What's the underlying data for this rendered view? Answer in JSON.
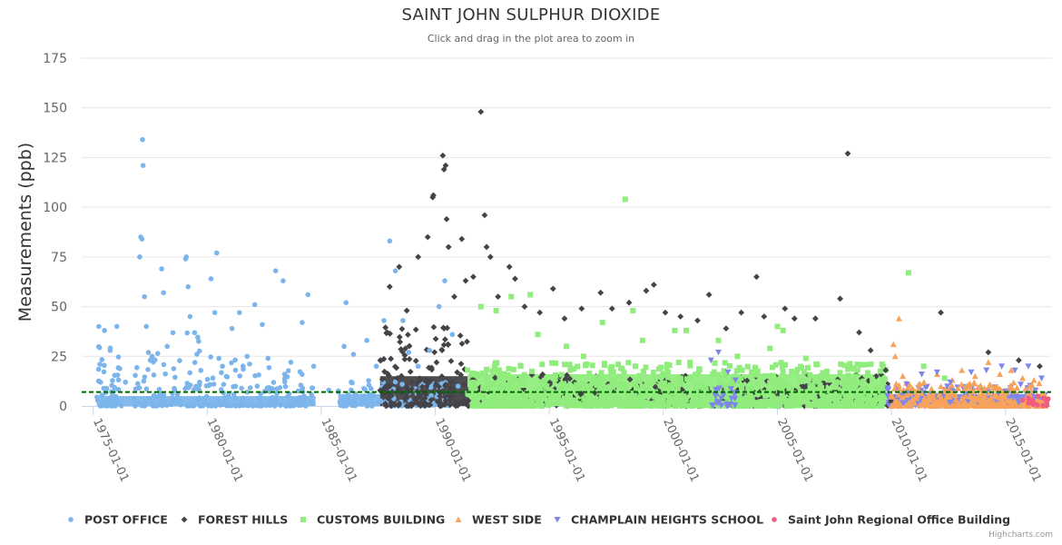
{
  "header": {
    "title": "SAINT JOHN SULPHUR DIOXIDE",
    "subtitle": "Click and drag in the plot area to zoom in"
  },
  "credits": "Highcharts.com",
  "chart_data": {
    "type": "scatter",
    "title": "SAINT JOHN SULPHUR DIOXIDE",
    "subtitle": "Click and drag in the plot area to zoom in",
    "ylabel": "Measurements (ppb)",
    "xlabel": "",
    "ylim": [
      0,
      175
    ],
    "xlim": [
      "1974-07-01",
      "2016-12-31"
    ],
    "y_ticks": [
      0,
      25,
      50,
      75,
      100,
      125,
      150,
      175
    ],
    "x_ticks": [
      "1975-01-01",
      "1980-01-01",
      "1985-01-01",
      "1990-01-01",
      "1995-01-01",
      "2000-01-01",
      "2005-01-01",
      "2010-01-01",
      "2015-01-01"
    ],
    "grid": "horizontal",
    "legend_position": "bottom",
    "reference_line": {
      "y": 7,
      "style": "dashed",
      "color": "#006400"
    },
    "series": [
      {
        "name": "POST OFFICE",
        "color": "#7cb5ec",
        "symbol": "circle",
        "points": [
          [
            "1975-04-01",
            40
          ],
          [
            "1975-07-01",
            38
          ],
          [
            "1975-10-01",
            28
          ],
          [
            "1976-01-15",
            40
          ],
          [
            "1976-06-01",
            12
          ],
          [
            "1977-03-01",
            134
          ],
          [
            "1977-03-10",
            121
          ],
          [
            "1977-02-01",
            85
          ],
          [
            "1977-02-20",
            84
          ],
          [
            "1977-01-15",
            75
          ],
          [
            "1977-04-01",
            55
          ],
          [
            "1977-05-01",
            40
          ],
          [
            "1977-08-01",
            25
          ],
          [
            "1978-01-01",
            69
          ],
          [
            "1978-02-01",
            57
          ],
          [
            "1978-04-01",
            30
          ],
          [
            "1979-02-01",
            75
          ],
          [
            "1979-01-20",
            74
          ],
          [
            "1979-03-01",
            60
          ],
          [
            "1979-04-01",
            45
          ],
          [
            "1979-09-01",
            12
          ],
          [
            "1980-03-01",
            64
          ],
          [
            "1980-06-01",
            77
          ],
          [
            "1980-05-01",
            47
          ],
          [
            "1980-09-01",
            20
          ],
          [
            "1981-02-01",
            39
          ],
          [
            "1981-06-01",
            47
          ],
          [
            "1981-10-01",
            25
          ],
          [
            "1982-02-01",
            51
          ],
          [
            "1982-06-01",
            41
          ],
          [
            "1982-09-01",
            24
          ],
          [
            "1983-01-01",
            68
          ],
          [
            "1983-05-01",
            63
          ],
          [
            "1983-09-01",
            22
          ],
          [
            "1984-03-01",
            42
          ],
          [
            "1984-06-01",
            56
          ],
          [
            "1984-09-01",
            20
          ],
          [
            "1985-05-01",
            8
          ],
          [
            "1986-01-01",
            30
          ],
          [
            "1986-02-01",
            52
          ],
          [
            "1986-06-01",
            26
          ],
          [
            "1987-01-01",
            33
          ],
          [
            "1987-06-01",
            20
          ],
          [
            "1987-10-01",
            43
          ],
          [
            "1988-01-01",
            83
          ],
          [
            "1988-04-01",
            68
          ],
          [
            "1988-08-01",
            43
          ],
          [
            "1988-11-01",
            27
          ],
          [
            "1989-04-01",
            20
          ],
          [
            "1989-10-01",
            28
          ],
          [
            "1990-03-01",
            50
          ],
          [
            "1990-06-01",
            63
          ],
          [
            "1990-10-01",
            36
          ],
          [
            "1991-01-01",
            10
          ]
        ]
      },
      {
        "name": "FOREST HILLS",
        "color": "#434348",
        "symbol": "diamond",
        "points": [
          [
            "1988-01-01",
            60
          ],
          [
            "1988-06-01",
            70
          ],
          [
            "1988-10-01",
            48
          ],
          [
            "1989-04-01",
            75
          ],
          [
            "1989-09-01",
            85
          ],
          [
            "1989-12-01",
            106
          ],
          [
            "1989-11-20",
            105
          ],
          [
            "1990-05-01",
            126
          ],
          [
            "1990-05-20",
            119
          ],
          [
            "1990-06-15",
            121
          ],
          [
            "1990-07-01",
            94
          ],
          [
            "1990-08-01",
            80
          ],
          [
            "1990-11-01",
            55
          ],
          [
            "1991-03-01",
            84
          ],
          [
            "1991-05-01",
            63
          ],
          [
            "1991-09-01",
            65
          ],
          [
            "1992-01-01",
            148
          ],
          [
            "1992-03-01",
            96
          ],
          [
            "1992-04-01",
            80
          ],
          [
            "1992-06-01",
            75
          ],
          [
            "1992-10-01",
            55
          ],
          [
            "1993-04-01",
            70
          ],
          [
            "1993-07-01",
            64
          ],
          [
            "1993-12-01",
            50
          ],
          [
            "1994-08-01",
            47
          ],
          [
            "1995-03-01",
            59
          ],
          [
            "1995-09-01",
            44
          ],
          [
            "1996-06-01",
            49
          ],
          [
            "1997-04-01",
            57
          ],
          [
            "1997-10-01",
            49
          ],
          [
            "1998-07-01",
            52
          ],
          [
            "1999-04-01",
            58
          ],
          [
            "1999-08-01",
            61
          ],
          [
            "2000-02-01",
            47
          ],
          [
            "2000-10-01",
            45
          ],
          [
            "2001-07-01",
            43
          ],
          [
            "2002-01-01",
            56
          ],
          [
            "2002-10-01",
            39
          ],
          [
            "2003-06-01",
            47
          ],
          [
            "2004-02-01",
            65
          ],
          [
            "2004-06-01",
            45
          ],
          [
            "2005-05-01",
            49
          ],
          [
            "2005-10-01",
            44
          ],
          [
            "2006-09-01",
            44
          ],
          [
            "2007-10-01",
            54
          ],
          [
            "2008-02-01",
            127
          ],
          [
            "2008-08-01",
            37
          ],
          [
            "2009-02-01",
            28
          ],
          [
            "2009-10-01",
            18
          ],
          [
            "2012-03-01",
            47
          ],
          [
            "2014-04-01",
            27
          ],
          [
            "2015-08-01",
            23
          ],
          [
            "2016-07-01",
            20
          ]
        ]
      },
      {
        "name": "CUSTOMS BUILDING",
        "color": "#90ed7d",
        "symbol": "square",
        "points": [
          [
            "1992-01-01",
            50
          ],
          [
            "1992-09-01",
            48
          ],
          [
            "1993-05-01",
            55
          ],
          [
            "1994-03-01",
            56
          ],
          [
            "1994-07-01",
            36
          ],
          [
            "1995-10-01",
            30
          ],
          [
            "1996-07-01",
            25
          ],
          [
            "1997-05-01",
            42
          ],
          [
            "1998-05-01",
            104
          ],
          [
            "1998-09-01",
            48
          ],
          [
            "1999-02-01",
            33
          ],
          [
            "2000-07-01",
            38
          ],
          [
            "2001-01-01",
            38
          ],
          [
            "2002-06-01",
            33
          ],
          [
            "2003-04-01",
            25
          ],
          [
            "2004-09-01",
            29
          ],
          [
            "2005-01-01",
            40
          ],
          [
            "2005-04-01",
            38
          ],
          [
            "2006-04-01",
            24
          ],
          [
            "2007-03-01",
            17
          ],
          [
            "2008-07-01",
            21
          ],
          [
            "2009-08-01",
            21
          ],
          [
            "2010-10-01",
            67
          ],
          [
            "2011-06-01",
            20
          ],
          [
            "2012-05-01",
            14
          ]
        ]
      },
      {
        "name": "WEST SIDE",
        "color": "#f7a35c",
        "symbol": "triangle",
        "points": [
          [
            "2010-02-01",
            31
          ],
          [
            "2010-05-01",
            44
          ],
          [
            "2010-03-01",
            25
          ],
          [
            "2010-07-01",
            15
          ],
          [
            "2011-04-01",
            11
          ],
          [
            "2012-01-01",
            16
          ],
          [
            "2012-09-01",
            13
          ],
          [
            "2013-02-01",
            18
          ],
          [
            "2013-09-01",
            15
          ],
          [
            "2014-04-01",
            22
          ],
          [
            "2014-10-01",
            16
          ],
          [
            "2015-04-01",
            18
          ],
          [
            "2015-10-01",
            14
          ],
          [
            "2016-04-01",
            13
          ]
        ]
      },
      {
        "name": "CHAMPLAIN HEIGHTS SCHOOL",
        "color": "#8085e9",
        "symbol": "triangle-down",
        "points": [
          [
            "2002-02-01",
            23
          ],
          [
            "2002-06-01",
            27
          ],
          [
            "2002-11-01",
            17
          ],
          [
            "2003-03-01",
            13
          ],
          [
            "2009-11-01",
            9
          ],
          [
            "2010-09-01",
            11
          ],
          [
            "2011-05-01",
            16
          ],
          [
            "2012-01-01",
            17
          ],
          [
            "2012-08-01",
            12
          ],
          [
            "2013-07-01",
            17
          ],
          [
            "2014-03-01",
            18
          ],
          [
            "2014-11-01",
            20
          ],
          [
            "2015-06-01",
            18
          ],
          [
            "2016-01-01",
            20
          ],
          [
            "2016-08-01",
            14
          ]
        ]
      },
      {
        "name": "Saint John Regional Office Building",
        "color": "#f15c80",
        "symbol": "circle",
        "points": [
          [
            "2015-10-01",
            3
          ],
          [
            "2016-01-01",
            4
          ],
          [
            "2016-03-01",
            3
          ],
          [
            "2016-06-01",
            5
          ],
          [
            "2016-09-01",
            4
          ],
          [
            "2016-11-01",
            3
          ]
        ]
      }
    ]
  }
}
